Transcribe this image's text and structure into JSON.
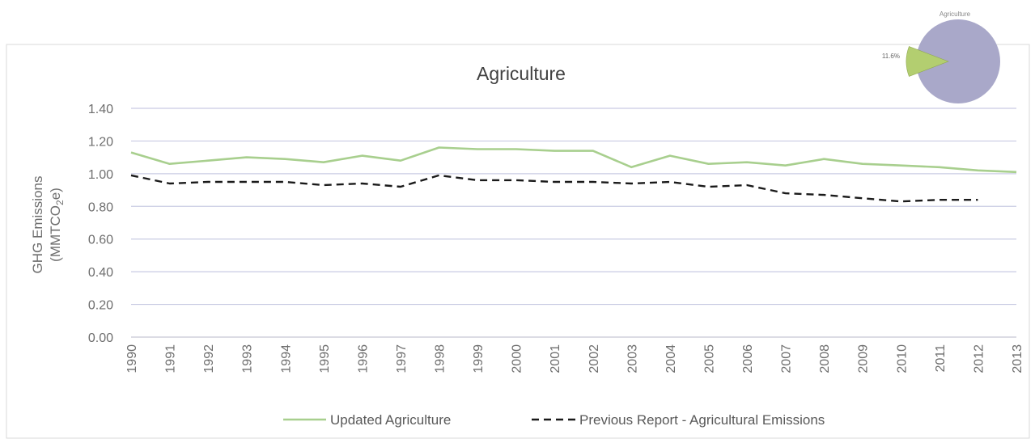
{
  "chart_data": {
    "type": "line",
    "title": "Agriculture",
    "ylabel": "GHG Emissions",
    "ylabel_unit": "(MMTCO",
    "ylabel_unit_sub": "2",
    "ylabel_unit_end": "e)",
    "ylim": [
      0,
      1.4
    ],
    "y_ticks": [
      "0.00",
      "0.20",
      "0.40",
      "0.60",
      "0.80",
      "1.00",
      "1.20",
      "1.40"
    ],
    "x": [
      "1990",
      "1991",
      "1992",
      "1993",
      "1994",
      "1995",
      "1996",
      "1997",
      "1998",
      "1999",
      "2000",
      "2001",
      "2002",
      "2003",
      "2004",
      "2005",
      "2006",
      "2007",
      "2008",
      "2009",
      "2010",
      "2011",
      "2012",
      "2013"
    ],
    "grid": true,
    "legend_position": "bottom",
    "series": [
      {
        "name": "Updated Agriculture",
        "color": "#a8cf8e",
        "style": "solid",
        "values": [
          1.13,
          1.06,
          1.08,
          1.1,
          1.09,
          1.07,
          1.11,
          1.08,
          1.16,
          1.15,
          1.15,
          1.14,
          1.14,
          1.04,
          1.11,
          1.06,
          1.07,
          1.05,
          1.09,
          1.06,
          1.05,
          1.04,
          1.02,
          1.01
        ]
      },
      {
        "name": "Previous Report - Agricultural Emissions",
        "color": "#1a1a1a",
        "style": "dashed",
        "values": [
          0.99,
          0.94,
          0.95,
          0.95,
          0.95,
          0.93,
          0.94,
          0.92,
          0.99,
          0.96,
          0.96,
          0.95,
          0.95,
          0.94,
          0.95,
          0.92,
          0.93,
          0.88,
          0.87,
          0.85,
          0.83,
          0.84,
          0.84,
          null
        ]
      }
    ],
    "inset_pie": {
      "title": "Agriculture",
      "slice_label": "11.6%",
      "slice_percent": 11.6,
      "slice_color": "#b3ce70",
      "rest_color": "#a9a8c9"
    }
  }
}
